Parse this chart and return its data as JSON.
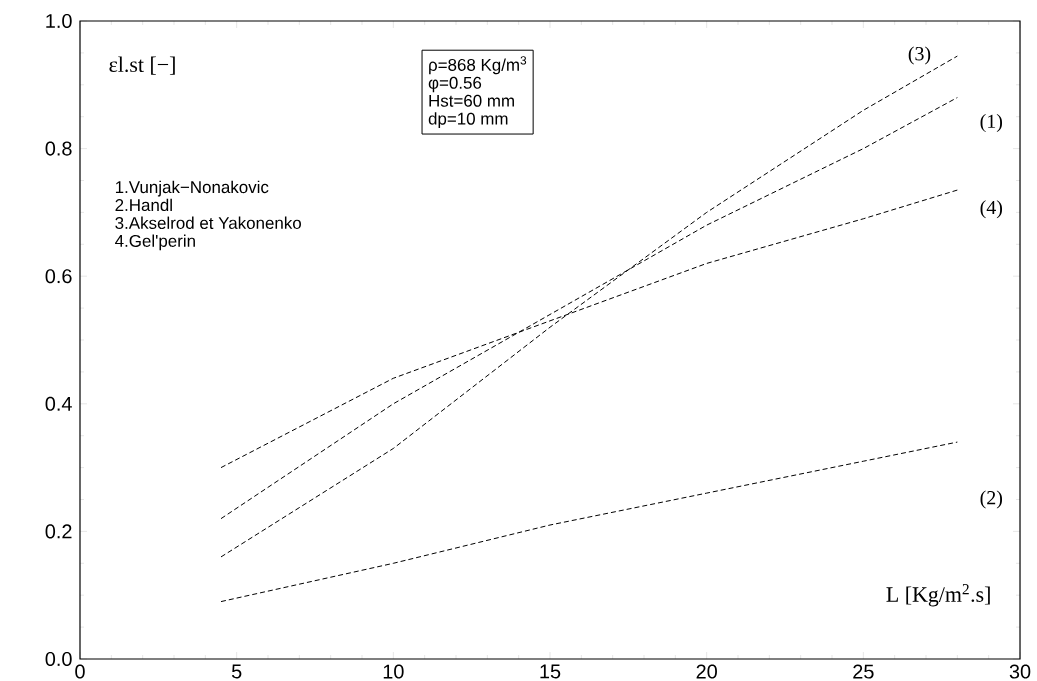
{
  "chart_data": {
    "type": "line",
    "xlabel": "L [Kg/m$^{2}$.s]",
    "ylabel": "εl.st [−]",
    "xlim": [
      0,
      30
    ],
    "ylim": [
      0,
      1
    ],
    "xticks": [
      0,
      5,
      10,
      15,
      20,
      25,
      30
    ],
    "yticks": [
      {
        "value": 0,
        "label": "0.0"
      },
      {
        "value": 0.2,
        "label": "0.2"
      },
      {
        "value": 0.4,
        "label": "0.4"
      },
      {
        "value": 0.6,
        "label": "0.6"
      },
      {
        "value": 0.8,
        "label": "0.8"
      },
      {
        "value": 1,
        "label": "1.0"
      }
    ],
    "x": [
      4.5,
      10,
      15,
      20,
      25,
      28
    ],
    "series": [
      {
        "name": "(1)",
        "color": "#000000",
        "values": [
          0.22,
          0.4,
          0.54,
          0.68,
          0.8,
          0.88
        ]
      },
      {
        "name": "(2)",
        "color": "#000000",
        "values": [
          0.09,
          0.15,
          0.21,
          0.26,
          0.31,
          0.34
        ]
      },
      {
        "name": "(3)",
        "color": "#000000",
        "values": [
          0.16,
          0.33,
          0.52,
          0.7,
          0.86,
          0.945
        ]
      },
      {
        "name": "(4)",
        "color": "#000000",
        "values": [
          0.3,
          0.44,
          0.53,
          0.62,
          0.69,
          0.735
        ]
      }
    ],
    "line_style": "dashed",
    "marker": "none",
    "grid": false,
    "legend": false,
    "annotations": [
      "ρ=868  Kg/m$^{3}$",
      "φ=0.56",
      "Hst=60  mm",
      "dp=10  mm",
      "1.Vunjak−Nonakovic",
      "2.Handl",
      "3.Akselrod  et  Yakonenko",
      "4.Gel'perin"
    ]
  }
}
